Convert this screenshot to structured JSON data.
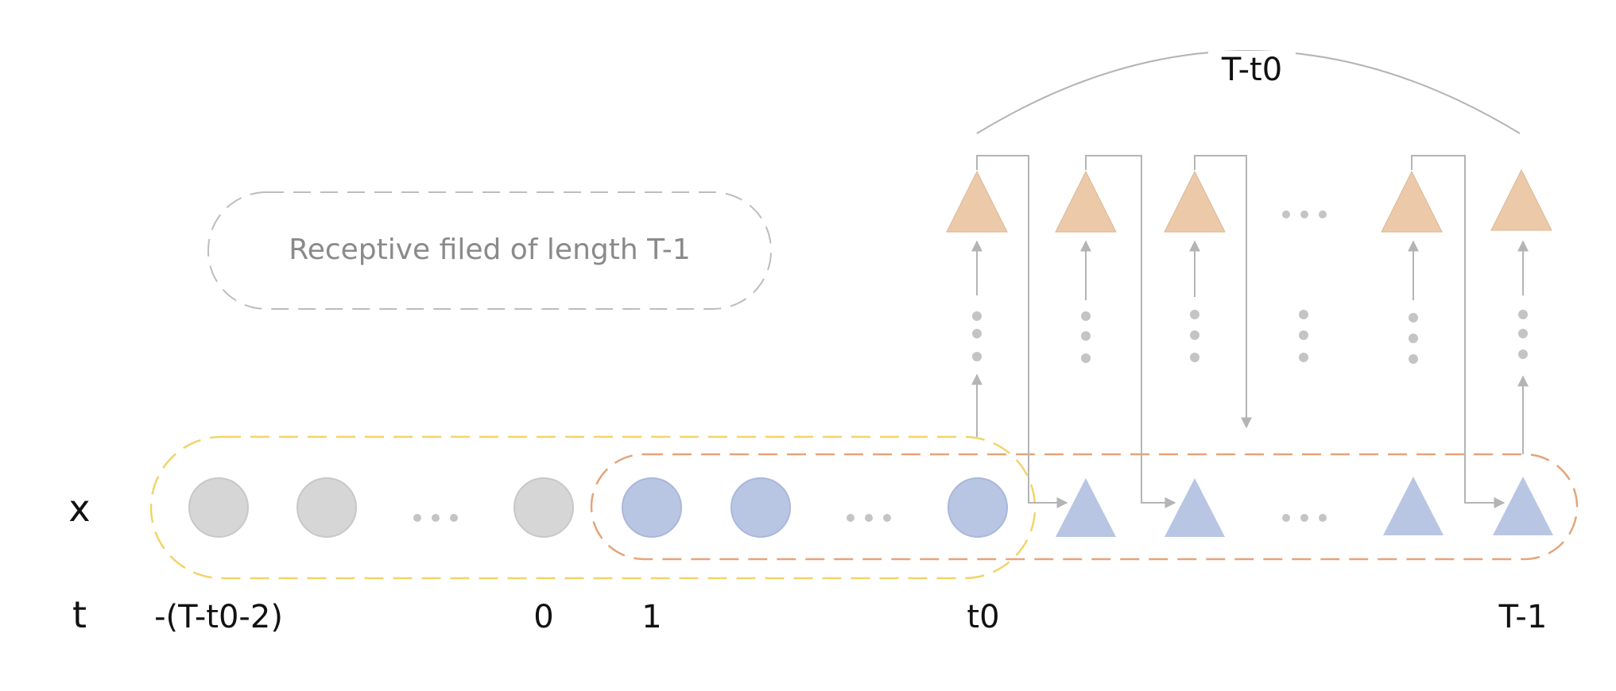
{
  "labels": {
    "x_row": "x",
    "t_row": "t",
    "span": "T-t0",
    "receptive": "Receptive filed of length T-1",
    "ellipsis": "…"
  },
  "ticks": [
    {
      "id": "tick-neg",
      "text": "-(T-t0-2)"
    },
    {
      "id": "tick-zero",
      "text": "0"
    },
    {
      "id": "tick-one",
      "text": "1"
    },
    {
      "id": "tick-t0",
      "text": "t0"
    },
    {
      "id": "tick-T-1",
      "text": "T-1"
    }
  ],
  "colors": {
    "gray_node": "#d6d6d6",
    "blue_node": "#b8c6e4",
    "orange_node": "#ecc9a8",
    "connector": "#b4b4b4",
    "yellow_dash": "#f1d46a",
    "orange_dash": "#e5a47a",
    "gray_dash": "#bdbdbd"
  }
}
